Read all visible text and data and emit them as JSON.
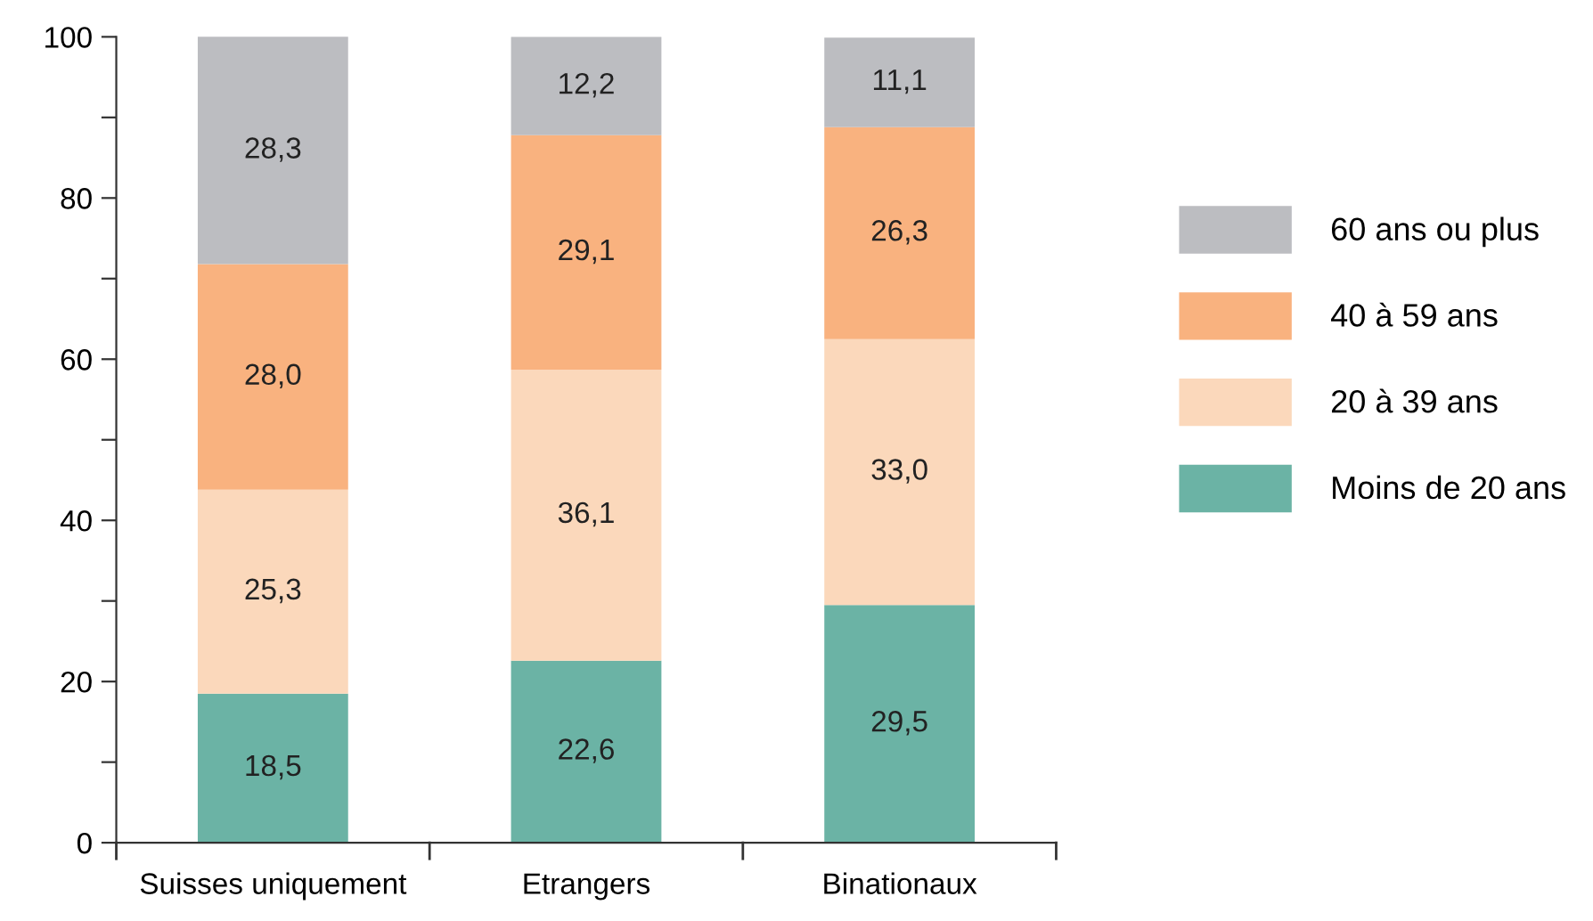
{
  "chart_data": {
    "type": "bar",
    "stacked": true,
    "categories": [
      "Suisses uniquement",
      "Etrangers",
      "Binationaux"
    ],
    "series": [
      {
        "name": "Moins de 20 ans",
        "color": "#6bb3a5",
        "values": [
          18.5,
          22.6,
          29.5
        ],
        "value_labels": [
          "18,5",
          "22,6",
          "29,5"
        ]
      },
      {
        "name": "20 à 39 ans",
        "color": "#fbd8bb",
        "values": [
          25.3,
          36.1,
          33.0
        ],
        "value_labels": [
          "25,3",
          "36,1",
          "33,0"
        ]
      },
      {
        "name": "40 à 59 ans",
        "color": "#f9b27f",
        "values": [
          28.0,
          29.1,
          26.3
        ],
        "value_labels": [
          "28,0",
          "29,1",
          "26,3"
        ]
      },
      {
        "name": "60 ans ou plus",
        "color": "#bcbdc1",
        "values": [
          28.3,
          12.2,
          11.1
        ],
        "value_labels": [
          "28,3",
          "12,2",
          "11,1"
        ]
      }
    ],
    "ylim": [
      0,
      100
    ],
    "yticks": [
      0,
      {
        "value": 10,
        "label": null
      },
      20,
      {
        "value": 30,
        "label": null
      },
      40,
      {
        "value": 50,
        "label": null
      },
      60,
      {
        "value": 70,
        "label": null
      },
      80,
      {
        "value": 90,
        "label": null
      },
      100
    ],
    "grid": false,
    "legend": "right"
  }
}
